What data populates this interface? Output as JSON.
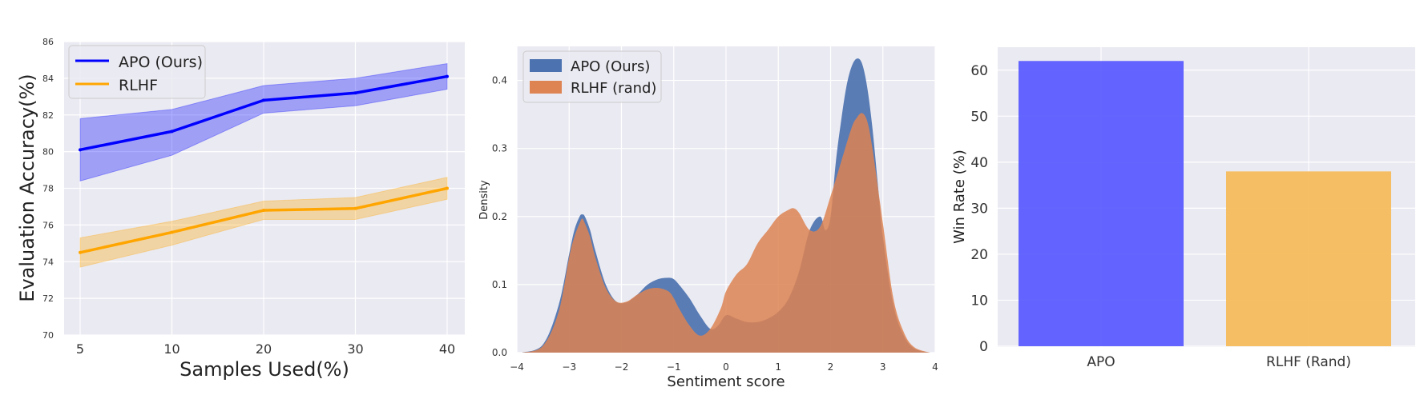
{
  "chart_data": [
    {
      "type": "line",
      "xlabel": "Samples Used(%)",
      "ylabel": "Evaluation Accuracy(%)",
      "x": [
        "5",
        "10",
        "20",
        "30",
        "40"
      ],
      "ylim": [
        70,
        86
      ],
      "y_ticks": [
        "70",
        "72",
        "74",
        "76",
        "78",
        "80",
        "82",
        "84",
        "86"
      ],
      "grid": true,
      "legend_position": "top-left",
      "series": [
        {
          "name": "APO (Ours)",
          "color": "#0000ff",
          "values": [
            80.1,
            81.1,
            82.8,
            83.2,
            84.1
          ],
          "band_low": [
            78.4,
            79.8,
            82.1,
            82.5,
            83.4
          ],
          "band_high": [
            81.8,
            82.3,
            83.6,
            84.0,
            84.8
          ]
        },
        {
          "name": "RLHF",
          "color": "#ffa500",
          "values": [
            74.5,
            75.6,
            76.8,
            76.9,
            78.0
          ],
          "band_low": [
            73.7,
            74.9,
            76.3,
            76.3,
            77.4
          ],
          "band_high": [
            75.3,
            76.2,
            77.3,
            77.5,
            78.6
          ]
        }
      ]
    },
    {
      "type": "area",
      "xlabel": "Sentiment score",
      "ylabel": "Density",
      "xlim": [
        -4,
        4
      ],
      "ylim": [
        0,
        0.45
      ],
      "x_ticks": [
        "−4",
        "−3",
        "−2",
        "−1",
        "0",
        "1",
        "2",
        "3",
        "4"
      ],
      "y_ticks": [
        "0.0",
        "0.1",
        "0.2",
        "0.3",
        "0.4"
      ],
      "grid": true,
      "legend_position": "top-left",
      "series": [
        {
          "name": "APO (Ours)",
          "color": "#4c72b0",
          "x": [
            -3.9,
            -3.5,
            -3.2,
            -3.0,
            -2.9,
            -2.8,
            -2.75,
            -2.7,
            -2.6,
            -2.5,
            -2.3,
            -2.1,
            -1.9,
            -1.7,
            -1.5,
            -1.3,
            -1.1,
            -1.0,
            -0.9,
            -0.7,
            -0.5,
            -0.3,
            -0.15,
            0.0,
            0.2,
            0.4,
            0.6,
            0.8,
            1.0,
            1.2,
            1.4,
            1.6,
            1.8,
            1.9,
            2.0,
            2.1,
            2.2,
            2.3,
            2.4,
            2.5,
            2.6,
            2.7,
            2.8,
            2.9,
            3.0,
            3.2,
            3.4,
            3.6,
            3.9
          ],
          "values": [
            0.0,
            0.012,
            0.07,
            0.145,
            0.18,
            0.2,
            0.203,
            0.2,
            0.18,
            0.15,
            0.1,
            0.075,
            0.074,
            0.085,
            0.1,
            0.108,
            0.11,
            0.108,
            0.1,
            0.08,
            0.055,
            0.035,
            0.04,
            0.055,
            0.05,
            0.045,
            0.045,
            0.05,
            0.06,
            0.08,
            0.12,
            0.18,
            0.2,
            0.18,
            0.2,
            0.28,
            0.34,
            0.39,
            0.42,
            0.432,
            0.425,
            0.39,
            0.33,
            0.25,
            0.17,
            0.07,
            0.025,
            0.006,
            0.0
          ]
        },
        {
          "name": "RLHF (rand)",
          "color": "#dd8452",
          "x": [
            -3.9,
            -3.5,
            -3.2,
            -3.0,
            -2.9,
            -2.8,
            -2.75,
            -2.7,
            -2.6,
            -2.5,
            -2.3,
            -2.1,
            -1.9,
            -1.7,
            -1.5,
            -1.3,
            -1.1,
            -1.0,
            -0.9,
            -0.7,
            -0.5,
            -0.3,
            -0.1,
            0.0,
            0.2,
            0.4,
            0.6,
            0.8,
            1.0,
            1.2,
            1.3,
            1.4,
            1.6,
            1.8,
            2.0,
            2.2,
            2.4,
            2.5,
            2.6,
            2.7,
            2.8,
            3.0,
            3.2,
            3.4,
            3.6,
            3.9
          ],
          "values": [
            0.0,
            0.01,
            0.06,
            0.14,
            0.17,
            0.19,
            0.197,
            0.19,
            0.17,
            0.14,
            0.095,
            0.075,
            0.075,
            0.085,
            0.093,
            0.095,
            0.09,
            0.08,
            0.065,
            0.04,
            0.025,
            0.035,
            0.065,
            0.09,
            0.115,
            0.13,
            0.16,
            0.18,
            0.2,
            0.21,
            0.212,
            0.205,
            0.18,
            0.185,
            0.23,
            0.28,
            0.33,
            0.345,
            0.352,
            0.34,
            0.3,
            0.19,
            0.08,
            0.03,
            0.008,
            0.0
          ]
        }
      ]
    },
    {
      "type": "bar",
      "categories": [
        "APO",
        "RLHF (Rand)"
      ],
      "values": [
        62,
        38
      ],
      "colors": [
        "#5c5cff",
        "#f5bc5c"
      ],
      "ylabel": "Win Rate (%)",
      "ylim": [
        0,
        65
      ],
      "y_ticks": [
        "0",
        "10",
        "20",
        "30",
        "40",
        "50",
        "60"
      ],
      "grid": true
    }
  ]
}
